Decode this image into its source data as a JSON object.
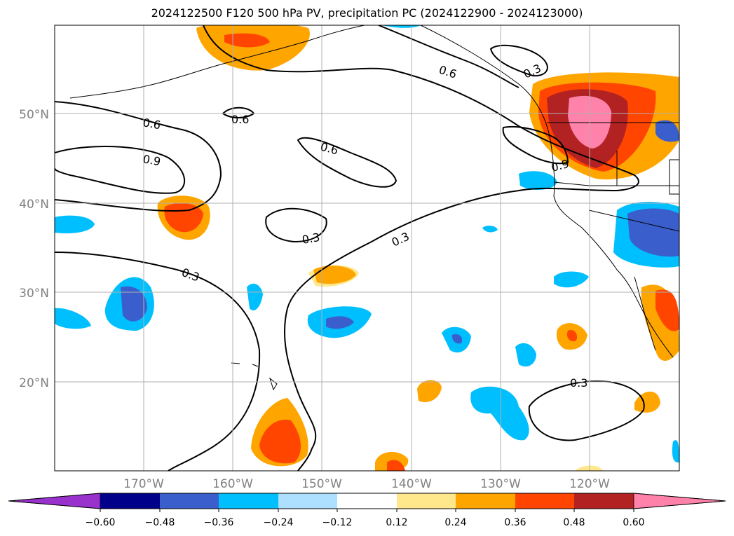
{
  "title": "2024122500 F120 500 hPa PV, precipitation PC (2024122900 - 2024123000)",
  "map": {
    "lat_labels": [
      "50°N",
      "40°N",
      "30°N",
      "20°N"
    ],
    "lon_labels": [
      "170°W",
      "160°W",
      "150°W",
      "140°W",
      "130°W",
      "120°W"
    ],
    "contour_labels": [
      "0.6",
      "0.6",
      "0.9",
      "0.6",
      "0.6",
      "0.3",
      "0.9",
      "0.3",
      "0.3",
      "0.3",
      "0.3"
    ],
    "label_color": "#808080",
    "contour_color": "#000000"
  },
  "colorbar": {
    "ticks": [
      "−0.60",
      "−0.48",
      "−0.36",
      "−0.24",
      "−0.12",
      "0.12",
      "0.24",
      "0.36",
      "0.48",
      "0.60"
    ],
    "colors": [
      "#9932CC",
      "#00008B",
      "#3A5FCD",
      "#00BFFF",
      "#ADE0FF",
      "#FFFFFF",
      "#FFE88C",
      "#FFA500",
      "#FF4500",
      "#B22222",
      "#FF82AB"
    ]
  }
}
